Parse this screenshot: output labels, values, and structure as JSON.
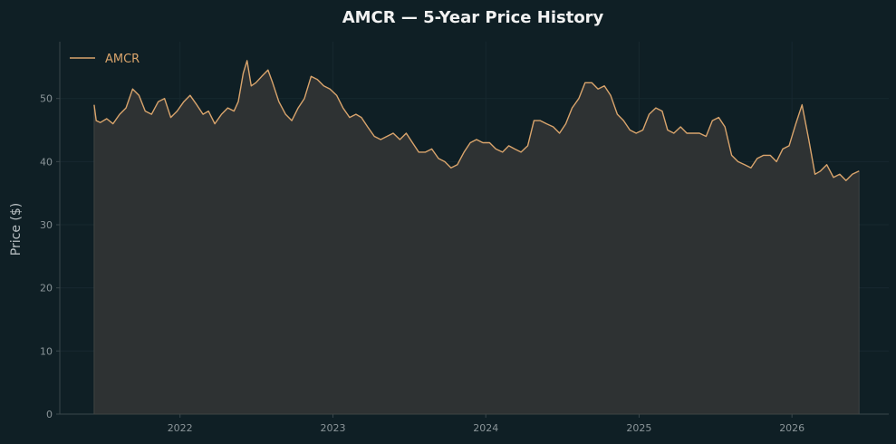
{
  "chart_data": {
    "type": "area",
    "title": "AMCR — 5-Year Price History",
    "xlabel": "",
    "ylabel": "Price ($)",
    "ylim": [
      0,
      59
    ],
    "xlim": [
      "2021-03-20",
      "2026-08-20"
    ],
    "yticks": [
      0,
      10,
      20,
      30,
      40,
      50
    ],
    "xticks": [
      "2022-01-01",
      "2023-01-01",
      "2024-01-01",
      "2025-01-01",
      "2026-01-01"
    ],
    "xtick_labels": [
      "2022",
      "2023",
      "2024",
      "2025",
      "2026"
    ],
    "grid": true,
    "legend": "top-left",
    "series": [
      {
        "name": "AMCR",
        "color": "#d9a46c",
        "fill": "#2e3233",
        "x": [
          "2021-06-10",
          "2021-06-15",
          "2021-06-25",
          "2021-07-10",
          "2021-07-25",
          "2021-08-10",
          "2021-08-25",
          "2021-09-10",
          "2021-09-25",
          "2021-10-10",
          "2021-10-25",
          "2021-11-10",
          "2021-11-25",
          "2021-12-10",
          "2021-12-25",
          "2022-01-10",
          "2022-01-25",
          "2022-02-10",
          "2022-02-25",
          "2022-03-10",
          "2022-03-25",
          "2022-04-10",
          "2022-04-25",
          "2022-05-10",
          "2022-05-20",
          "2022-06-01",
          "2022-06-10",
          "2022-06-20",
          "2022-07-01",
          "2022-07-15",
          "2022-07-30",
          "2022-08-10",
          "2022-08-25",
          "2022-09-10",
          "2022-09-25",
          "2022-10-10",
          "2022-10-25",
          "2022-11-10",
          "2022-11-25",
          "2022-12-10",
          "2022-12-25",
          "2023-01-10",
          "2023-01-25",
          "2023-02-10",
          "2023-02-25",
          "2023-03-10",
          "2023-03-25",
          "2023-04-10",
          "2023-04-25",
          "2023-05-10",
          "2023-05-25",
          "2023-06-10",
          "2023-06-25",
          "2023-07-10",
          "2023-07-25",
          "2023-08-10",
          "2023-08-25",
          "2023-09-10",
          "2023-09-25",
          "2023-10-10",
          "2023-10-25",
          "2023-11-10",
          "2023-11-25",
          "2023-12-10",
          "2023-12-25",
          "2024-01-10",
          "2024-01-25",
          "2024-02-10",
          "2024-02-25",
          "2024-03-10",
          "2024-03-25",
          "2024-04-10",
          "2024-04-25",
          "2024-05-10",
          "2024-05-25",
          "2024-06-10",
          "2024-06-25",
          "2024-07-10",
          "2024-07-25",
          "2024-08-10",
          "2024-08-25",
          "2024-09-10",
          "2024-09-25",
          "2024-10-10",
          "2024-10-25",
          "2024-11-10",
          "2024-11-25",
          "2024-12-10",
          "2024-12-25",
          "2025-01-10",
          "2025-01-25",
          "2025-02-10",
          "2025-02-25",
          "2025-03-10",
          "2025-03-25",
          "2025-04-10",
          "2025-04-25",
          "2025-05-10",
          "2025-05-25",
          "2025-06-10",
          "2025-06-25",
          "2025-07-10",
          "2025-07-25",
          "2025-08-10",
          "2025-08-25",
          "2025-09-10",
          "2025-09-25",
          "2025-10-10",
          "2025-10-25",
          "2025-11-10",
          "2025-11-25",
          "2025-12-10",
          "2025-12-25",
          "2026-01-10",
          "2026-01-25",
          "2026-02-10",
          "2026-02-25",
          "2026-03-10",
          "2026-03-25",
          "2026-04-10",
          "2026-04-25",
          "2026-05-10",
          "2026-05-25",
          "2026-06-10"
        ],
        "values": [
          49.0,
          46.5,
          46.2,
          46.8,
          46.0,
          47.5,
          48.5,
          51.5,
          50.5,
          48.0,
          47.5,
          49.5,
          50.0,
          47.0,
          48.0,
          49.5,
          50.5,
          49.0,
          47.5,
          48.0,
          46.0,
          47.5,
          48.5,
          48.0,
          49.5,
          54.0,
          56.0,
          52.0,
          52.5,
          53.5,
          54.5,
          52.5,
          49.5,
          47.5,
          46.5,
          48.5,
          50.0,
          53.5,
          53.0,
          52.0,
          51.5,
          50.5,
          48.5,
          47.0,
          47.5,
          47.0,
          45.5,
          44.0,
          43.5,
          44.0,
          44.5,
          43.5,
          44.5,
          43.0,
          41.5,
          41.5,
          42.0,
          40.5,
          40.0,
          39.0,
          39.5,
          41.5,
          43.0,
          43.5,
          43.0,
          43.0,
          42.0,
          41.5,
          42.5,
          42.0,
          41.5,
          42.5,
          46.5,
          46.5,
          46.0,
          45.5,
          44.5,
          46.0,
          48.5,
          50.0,
          52.5,
          52.5,
          51.5,
          52.0,
          50.5,
          47.5,
          46.5,
          45.0,
          44.5,
          45.0,
          47.5,
          48.5,
          48.0,
          45.0,
          44.5,
          45.5,
          44.5,
          44.5,
          44.5,
          44.0,
          46.5,
          47.0,
          45.5,
          41.0,
          40.0,
          39.5,
          39.0,
          40.5,
          41.0,
          41.0,
          40.0,
          42.0,
          42.5,
          46.0,
          49.0,
          43.5,
          38.0,
          38.5,
          39.5,
          37.5,
          38.0,
          37.0,
          38.0,
          38.5
        ]
      }
    ]
  }
}
